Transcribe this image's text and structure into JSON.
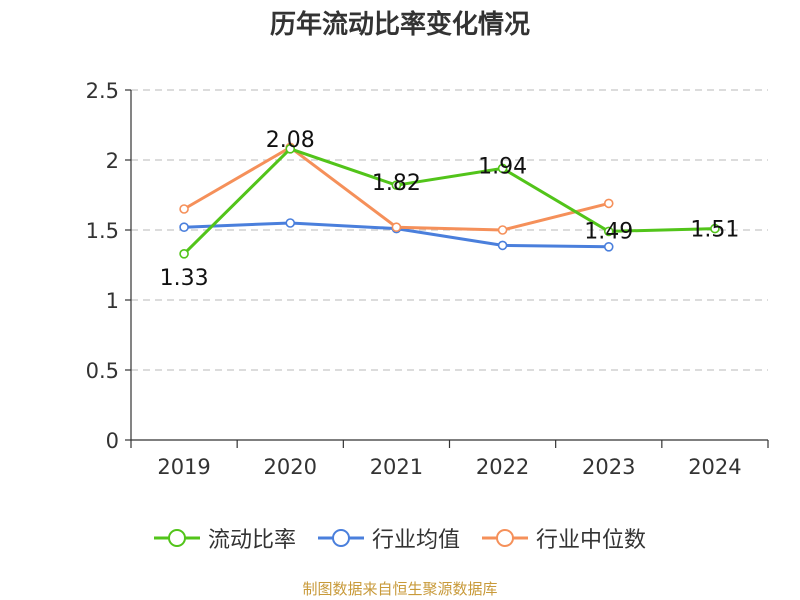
{
  "chart_data": {
    "type": "line",
    "title": "历年流动比率变化情况",
    "categories": [
      "2019",
      "2020",
      "2021",
      "2022",
      "2023",
      "2024"
    ],
    "ylim": [
      0,
      2.5
    ],
    "yticks": [
      0,
      0.5,
      1,
      1.5,
      2,
      2.5
    ],
    "ytick_labels": [
      "0",
      "0.5",
      "1",
      "1.5",
      "2",
      "2.5"
    ],
    "grid": true,
    "legend_position": "bottom",
    "series": [
      {
        "name": "流动比率",
        "color": "#52c41a",
        "values": [
          1.33,
          2.08,
          1.82,
          1.94,
          1.49,
          1.51
        ],
        "labels": [
          "1.33",
          "2.08",
          "1.82",
          "1.94",
          "1.49",
          "1.51"
        ]
      },
      {
        "name": "行业均值",
        "color": "#4a7fdc",
        "values": [
          1.52,
          1.55,
          1.51,
          1.39,
          1.38,
          null
        ]
      },
      {
        "name": "行业中位数",
        "color": "#f5905a",
        "values": [
          1.65,
          2.09,
          1.52,
          1.5,
          1.69,
          null
        ]
      }
    ]
  },
  "source_note": "制图数据来自恒生聚源数据库"
}
